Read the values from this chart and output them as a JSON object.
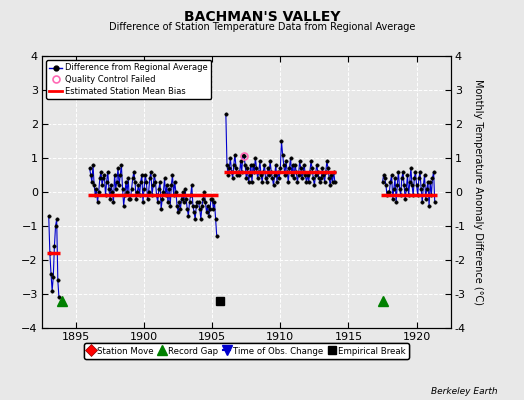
{
  "title": "BACHMAN'S VALLEY",
  "subtitle": "Difference of Station Temperature Data from Regional Average",
  "ylabel": "Monthly Temperature Anomaly Difference (°C)",
  "xlabel_bottom": "Berkeley Earth",
  "ylim": [
    -4,
    4
  ],
  "xlim": [
    1892.5,
    1922.5
  ],
  "xticks": [
    1895,
    1900,
    1905,
    1910,
    1915,
    1920
  ],
  "yticks": [
    -4,
    -3,
    -2,
    -1,
    0,
    1,
    2,
    3,
    4
  ],
  "background_color": "#e8e8e8",
  "plot_bg_color": "#e8e8e8",
  "segment1_x_start": 1892.9,
  "segment1_x_end": 1893.85,
  "segment1_bias": -1.8,
  "segment2_x_start": 1895.9,
  "segment2_x_end": 1905.45,
  "segment2_bias": -0.1,
  "segment3_x_start": 1905.9,
  "segment3_x_end": 1914.1,
  "segment3_bias": 0.6,
  "segment4_x_start": 1917.4,
  "segment4_x_end": 1921.5,
  "segment4_bias": -0.1,
  "record_gaps": [
    1894.0,
    1917.5
  ],
  "empirical_breaks": [
    1905.6
  ],
  "time_obs_changes": [],
  "station_moves": [],
  "qc_failed_x": [
    1907.3
  ],
  "qc_failed_y": [
    1.05
  ],
  "line_color": "#0000cc",
  "bias_color": "#ff0000",
  "marker_color": "#000000",
  "qc_color": "#ff69b4",
  "data_x": [
    1893.0,
    1893.083,
    1893.167,
    1893.25,
    1893.333,
    1893.417,
    1893.5,
    1893.583,
    1893.667,
    1893.75,
    1896.0,
    1896.083,
    1896.167,
    1896.25,
    1896.333,
    1896.417,
    1896.5,
    1896.583,
    1896.667,
    1896.75,
    1896.833,
    1896.917,
    1897.0,
    1897.083,
    1897.167,
    1897.25,
    1897.333,
    1897.417,
    1897.5,
    1897.583,
    1897.667,
    1897.75,
    1897.833,
    1897.917,
    1898.0,
    1898.083,
    1898.167,
    1898.25,
    1898.333,
    1898.417,
    1898.5,
    1898.583,
    1898.667,
    1898.75,
    1898.833,
    1898.917,
    1899.0,
    1899.083,
    1899.167,
    1899.25,
    1899.333,
    1899.417,
    1899.5,
    1899.583,
    1899.667,
    1899.75,
    1899.833,
    1899.917,
    1900.0,
    1900.083,
    1900.167,
    1900.25,
    1900.333,
    1900.417,
    1900.5,
    1900.583,
    1900.667,
    1900.75,
    1900.833,
    1900.917,
    1901.0,
    1901.083,
    1901.167,
    1901.25,
    1901.333,
    1901.417,
    1901.5,
    1901.583,
    1901.667,
    1901.75,
    1901.833,
    1901.917,
    1902.0,
    1902.083,
    1902.167,
    1902.25,
    1902.333,
    1902.417,
    1902.5,
    1902.583,
    1902.667,
    1902.75,
    1902.833,
    1902.917,
    1903.0,
    1903.083,
    1903.167,
    1903.25,
    1903.333,
    1903.417,
    1903.5,
    1903.583,
    1903.667,
    1903.75,
    1903.833,
    1903.917,
    1904.0,
    1904.083,
    1904.167,
    1904.25,
    1904.333,
    1904.417,
    1904.5,
    1904.583,
    1904.667,
    1904.75,
    1904.833,
    1904.917,
    1905.0,
    1905.083,
    1905.167,
    1905.25,
    1905.333,
    1906.0,
    1906.083,
    1906.167,
    1906.25,
    1906.333,
    1906.417,
    1906.5,
    1906.583,
    1906.667,
    1906.75,
    1906.833,
    1906.917,
    1907.0,
    1907.083,
    1907.167,
    1907.25,
    1907.333,
    1907.417,
    1907.5,
    1907.583,
    1907.667,
    1907.75,
    1907.833,
    1907.917,
    1908.0,
    1908.083,
    1908.167,
    1908.25,
    1908.333,
    1908.417,
    1908.5,
    1908.583,
    1908.667,
    1908.75,
    1908.833,
    1908.917,
    1909.0,
    1909.083,
    1909.167,
    1909.25,
    1909.333,
    1909.417,
    1909.5,
    1909.583,
    1909.667,
    1909.75,
    1909.833,
    1909.917,
    1910.0,
    1910.083,
    1910.167,
    1910.25,
    1910.333,
    1910.417,
    1910.5,
    1910.583,
    1910.667,
    1910.75,
    1910.833,
    1910.917,
    1911.0,
    1911.083,
    1911.167,
    1911.25,
    1911.333,
    1911.417,
    1911.5,
    1911.583,
    1911.667,
    1911.75,
    1911.833,
    1911.917,
    1912.0,
    1912.083,
    1912.167,
    1912.25,
    1912.333,
    1912.417,
    1912.5,
    1912.583,
    1912.667,
    1912.75,
    1912.833,
    1912.917,
    1913.0,
    1913.083,
    1913.167,
    1913.25,
    1913.333,
    1913.417,
    1913.5,
    1913.583,
    1913.667,
    1913.75,
    1913.833,
    1913.917,
    1914.0,
    1917.5,
    1917.583,
    1917.667,
    1917.75,
    1917.833,
    1917.917,
    1918.0,
    1918.083,
    1918.167,
    1918.25,
    1918.333,
    1918.417,
    1918.5,
    1918.583,
    1918.667,
    1918.75,
    1918.833,
    1918.917,
    1919.0,
    1919.083,
    1919.167,
    1919.25,
    1919.333,
    1919.417,
    1919.5,
    1919.583,
    1919.667,
    1919.75,
    1919.833,
    1919.917,
    1920.0,
    1920.083,
    1920.167,
    1920.25,
    1920.333,
    1920.417,
    1920.5,
    1920.583,
    1920.667,
    1920.75,
    1920.833,
    1920.917,
    1921.0,
    1921.083,
    1921.167,
    1921.25,
    1921.333
  ],
  "data_y": [
    -0.7,
    -1.8,
    -2.4,
    -2.9,
    -2.5,
    -1.6,
    -1.0,
    -0.8,
    -2.6,
    -3.1,
    0.7,
    0.5,
    0.3,
    0.8,
    0.2,
    -0.1,
    0.1,
    -0.3,
    0.0,
    0.4,
    0.6,
    0.2,
    0.4,
    0.5,
    -0.1,
    0.3,
    0.6,
    0.1,
    -0.2,
    0.2,
    0.0,
    -0.3,
    0.5,
    0.1,
    0.3,
    0.7,
    0.2,
    0.5,
    0.8,
    0.1,
    -0.4,
    -0.1,
    0.3,
    0.0,
    0.4,
    -0.2,
    -0.2,
    0.1,
    0.4,
    0.6,
    0.3,
    -0.2,
    0.0,
    0.2,
    -0.1,
    0.3,
    0.5,
    -0.3,
    0.1,
    0.5,
    0.3,
    -0.2,
    0.0,
    0.4,
    0.6,
    -0.1,
    0.2,
    0.5,
    0.3,
    -0.1,
    -0.3,
    0.1,
    0.3,
    -0.5,
    -0.2,
    0.0,
    0.4,
    -0.1,
    0.2,
    -0.3,
    0.1,
    -0.4,
    0.2,
    0.5,
    -0.1,
    0.3,
    0.0,
    -0.4,
    -0.6,
    -0.3,
    -0.5,
    -0.2,
    0.0,
    -0.3,
    0.1,
    -0.2,
    -0.5,
    -0.7,
    -0.3,
    -0.1,
    0.2,
    -0.4,
    -0.6,
    -0.8,
    -0.4,
    -0.3,
    -0.3,
    -0.5,
    -0.8,
    -0.4,
    -0.2,
    0.0,
    -0.3,
    -0.6,
    -0.4,
    -0.7,
    -0.5,
    -0.2,
    -0.2,
    -0.5,
    -0.3,
    -0.8,
    -1.3,
    2.3,
    0.8,
    0.5,
    0.7,
    1.0,
    0.6,
    0.4,
    0.8,
    1.1,
    0.7,
    0.5,
    0.6,
    0.5,
    0.9,
    0.6,
    1.1,
    1.05,
    0.8,
    0.4,
    0.7,
    0.3,
    0.5,
    0.8,
    0.3,
    0.8,
    0.6,
    1.0,
    0.7,
    0.4,
    0.6,
    0.9,
    0.5,
    0.3,
    0.6,
    0.8,
    0.4,
    0.3,
    0.7,
    0.5,
    0.9,
    0.6,
    0.4,
    0.2,
    0.5,
    0.8,
    0.3,
    0.6,
    0.4,
    0.7,
    1.5,
    1.1,
    0.8,
    0.5,
    0.9,
    0.6,
    0.3,
    0.7,
    1.0,
    0.5,
    0.8,
    0.4,
    0.8,
    0.6,
    0.3,
    0.5,
    0.9,
    0.7,
    0.4,
    0.6,
    0.8,
    0.5,
    0.3,
    0.5,
    0.3,
    0.6,
    0.9,
    0.7,
    0.4,
    0.2,
    0.5,
    0.8,
    0.6,
    0.4,
    0.3,
    0.4,
    0.7,
    0.5,
    0.3,
    0.6,
    0.9,
    0.7,
    0.4,
    0.2,
    0.5,
    0.3,
    0.6,
    0.3,
    0.3,
    0.5,
    0.4,
    0.2,
    -0.1,
    0.0,
    0.0,
    0.3,
    0.5,
    -0.2,
    0.1,
    0.4,
    -0.3,
    0.2,
    0.6,
    0.1,
    -0.1,
    0.4,
    0.6,
    0.2,
    -0.2,
    0.1,
    0.5,
    -0.1,
    0.3,
    0.7,
    0.2,
    -0.1,
    0.4,
    0.6,
    0.2,
    -0.1,
    0.4,
    0.6,
    0.1,
    -0.3,
    0.2,
    0.5,
    -0.2,
    0.1,
    0.3,
    -0.4,
    0.3,
    -0.1,
    0.4,
    0.6,
    -0.3
  ]
}
